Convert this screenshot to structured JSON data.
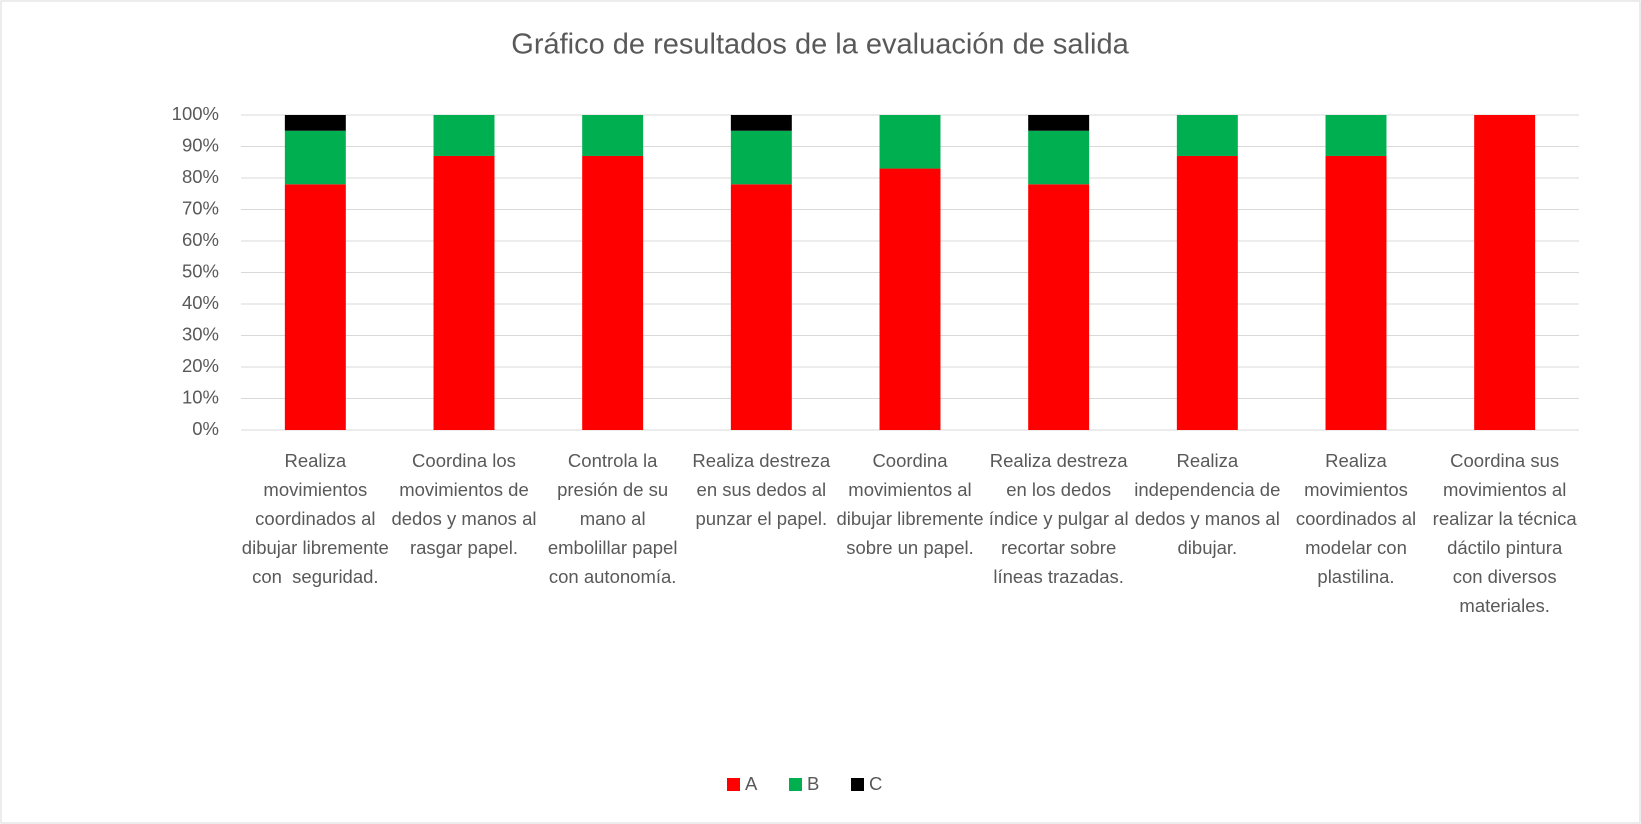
{
  "chart_data": {
    "type": "stacked_bar",
    "title": "Gráfico de resultados de la evaluación de salida",
    "categories": [
      "Realiza movimientos coordinados al dibujar libremente con  seguridad.",
      "Coordina los movimientos de dedos y manos al rasgar papel.",
      "Controla la presión de su mano al embolillar papel con autonomía.",
      "Realiza destreza en sus dedos al punzar el papel.",
      "Coordina movimientos al dibujar libremente sobre un papel.",
      "Realiza destreza en los dedos índice y pulgar al recortar sobre líneas trazadas.",
      "Realiza independencia de dedos y manos al dibujar.",
      "Realiza movimientos coordinados al modelar con plastilina.",
      "Coordina sus movimientos al realizar la técnica dáctilo pintura con diversos materiales."
    ],
    "series": [
      {
        "name": "A",
        "color": "#ff0000",
        "values": [
          78,
          87,
          87,
          78,
          83,
          78,
          87,
          87,
          100
        ]
      },
      {
        "name": "B",
        "color": "#00b050",
        "values": [
          17,
          13,
          13,
          17,
          17,
          17,
          13,
          13,
          0
        ]
      },
      {
        "name": "C",
        "color": "#000000",
        "values": [
          5,
          0,
          0,
          5,
          0,
          5,
          0,
          0,
          0
        ]
      }
    ],
    "ylim": [
      0,
      100
    ],
    "yticks": [
      {
        "value": 0,
        "label": "0%"
      },
      {
        "value": 10,
        "label": "10%"
      },
      {
        "value": 20,
        "label": "20%"
      },
      {
        "value": 30,
        "label": "30%"
      },
      {
        "value": 40,
        "label": "40%"
      },
      {
        "value": 50,
        "label": "50%"
      },
      {
        "value": 60,
        "label": "60%"
      },
      {
        "value": 70,
        "label": "70%"
      },
      {
        "value": 80,
        "label": "80%"
      },
      {
        "value": 90,
        "label": "90%"
      },
      {
        "value": 100,
        "label": "100%"
      }
    ],
    "grid": true,
    "legend": "bottom"
  }
}
